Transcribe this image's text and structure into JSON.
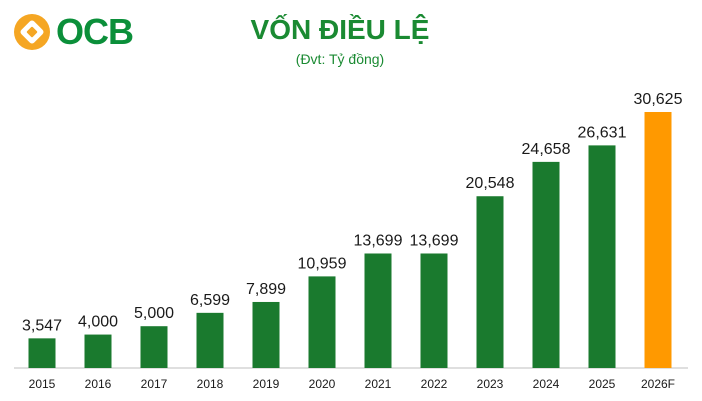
{
  "brand": {
    "name": "OCB",
    "primary_color": "#0b8f3a",
    "accent_color": "#f5a623"
  },
  "header": {
    "title": "VỐN ĐIỀU LỆ",
    "subtitle": "(Đvt: Tỷ đồng)"
  },
  "chart_data": {
    "type": "bar",
    "title": "VỐN ĐIỀU LỆ",
    "subtitle": "(Đvt: Tỷ đồng)",
    "categories": [
      "2015",
      "2016",
      "2017",
      "2018",
      "2019",
      "2020",
      "2021",
      "2022",
      "2023",
      "2024",
      "2025",
      "2026F"
    ],
    "values": [
      3547,
      4000,
      5000,
      6599,
      7899,
      10959,
      13699,
      13699,
      20548,
      24658,
      26631,
      30625
    ],
    "value_labels": [
      "3,547",
      "4,000",
      "5,000",
      "6,599",
      "7,899",
      "10,959",
      "13,699",
      "13,699",
      "20,548",
      "24,658",
      "26,631",
      "30,625"
    ],
    "bar_colors": [
      "#1a7a2e",
      "#1a7a2e",
      "#1a7a2e",
      "#1a7a2e",
      "#1a7a2e",
      "#1a7a2e",
      "#1a7a2e",
      "#1a7a2e",
      "#1a7a2e",
      "#1a7a2e",
      "#1a7a2e",
      "#ff9900"
    ],
    "ylim": [
      0,
      30625
    ],
    "grid": false,
    "legend": "none"
  }
}
